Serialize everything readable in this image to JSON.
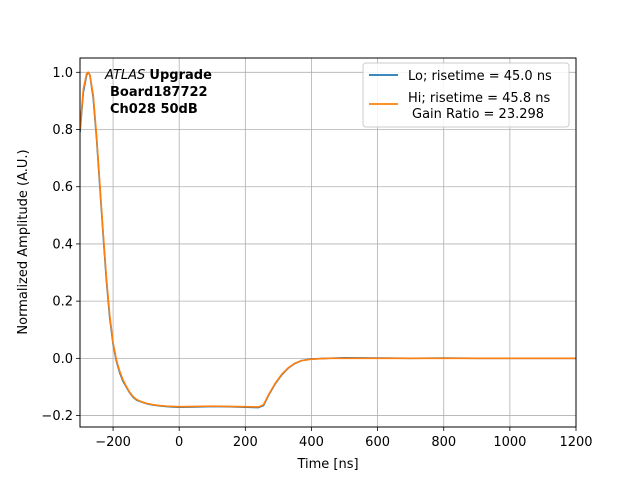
{
  "chart_data": {
    "type": "line",
    "xlabel": "Time [ns]",
    "ylabel": "Normalized Amplitude (A.U.)",
    "xlim": [
      -300,
      1200
    ],
    "ylim": [
      -0.24,
      1.05
    ],
    "xticks": [
      -200,
      0,
      200,
      400,
      600,
      800,
      1000,
      1200
    ],
    "xtick_labels": [
      "−200",
      "0",
      "200",
      "400",
      "600",
      "800",
      "1000",
      "1200"
    ],
    "yticks": [
      -0.2,
      0.0,
      0.2,
      0.4,
      0.6,
      0.8,
      1.0
    ],
    "ytick_labels": [
      "−0.2",
      "0.0",
      "0.2",
      "0.4",
      "0.6",
      "0.8",
      "1.0"
    ],
    "grid": true,
    "legend_position": "top-right",
    "annotation": {
      "italic": "ATLAS",
      "bold": "Upgrade",
      "line2": "Board187722",
      "line3": "Ch028 50dB"
    },
    "series": [
      {
        "name": "Lo; risetime = 45.0 ns",
        "color": "#1f77b4",
        "x": [
          -300,
          -290,
          -280,
          -275,
          -270,
          -260,
          -250,
          -240,
          -230,
          -220,
          -210,
          -200,
          -190,
          -180,
          -170,
          -160,
          -150,
          -140,
          -130,
          -120,
          -100,
          -80,
          -60,
          -40,
          -20,
          0,
          50,
          100,
          150,
          200,
          240,
          255,
          270,
          290,
          310,
          330,
          350,
          370,
          400,
          450,
          500,
          600,
          700,
          800,
          900,
          1000,
          1100,
          1200
        ],
        "y": [
          0.79,
          0.93,
          0.99,
          1.0,
          0.99,
          0.91,
          0.77,
          0.6,
          0.43,
          0.27,
          0.14,
          0.05,
          -0.01,
          -0.05,
          -0.08,
          -0.1,
          -0.12,
          -0.135,
          -0.145,
          -0.15,
          -0.158,
          -0.163,
          -0.166,
          -0.168,
          -0.17,
          -0.171,
          -0.17,
          -0.168,
          -0.169,
          -0.171,
          -0.172,
          -0.165,
          -0.13,
          -0.09,
          -0.058,
          -0.034,
          -0.018,
          -0.008,
          -0.002,
          0.0,
          0.002,
          0.001,
          0.0,
          0.001,
          0.0,
          0.0,
          0.0,
          0.0
        ]
      },
      {
        "name": "Hi; risetime = 45.8 ns",
        "name_line2": "Gain Ratio = 23.298",
        "color": "#ff7f0e",
        "x": [
          -300,
          -290,
          -280,
          -275,
          -270,
          -260,
          -250,
          -240,
          -230,
          -220,
          -210,
          -200,
          -190,
          -180,
          -170,
          -160,
          -150,
          -140,
          -130,
          -120,
          -100,
          -80,
          -60,
          -40,
          -20,
          0,
          50,
          100,
          150,
          200,
          240,
          255,
          270,
          290,
          310,
          330,
          350,
          370,
          400,
          450,
          500,
          600,
          700,
          800,
          900,
          1000,
          1100,
          1200
        ],
        "y": [
          0.8,
          0.94,
          0.995,
          1.0,
          0.99,
          0.92,
          0.78,
          0.61,
          0.44,
          0.28,
          0.15,
          0.055,
          -0.005,
          -0.045,
          -0.075,
          -0.098,
          -0.118,
          -0.133,
          -0.143,
          -0.149,
          -0.157,
          -0.162,
          -0.165,
          -0.167,
          -0.168,
          -0.169,
          -0.168,
          -0.167,
          -0.168,
          -0.169,
          -0.17,
          -0.162,
          -0.128,
          -0.088,
          -0.056,
          -0.033,
          -0.017,
          -0.008,
          -0.003,
          0.0,
          0.0,
          0.0,
          0.0,
          0.0,
          0.0,
          0.0,
          0.0,
          0.0
        ]
      }
    ]
  }
}
